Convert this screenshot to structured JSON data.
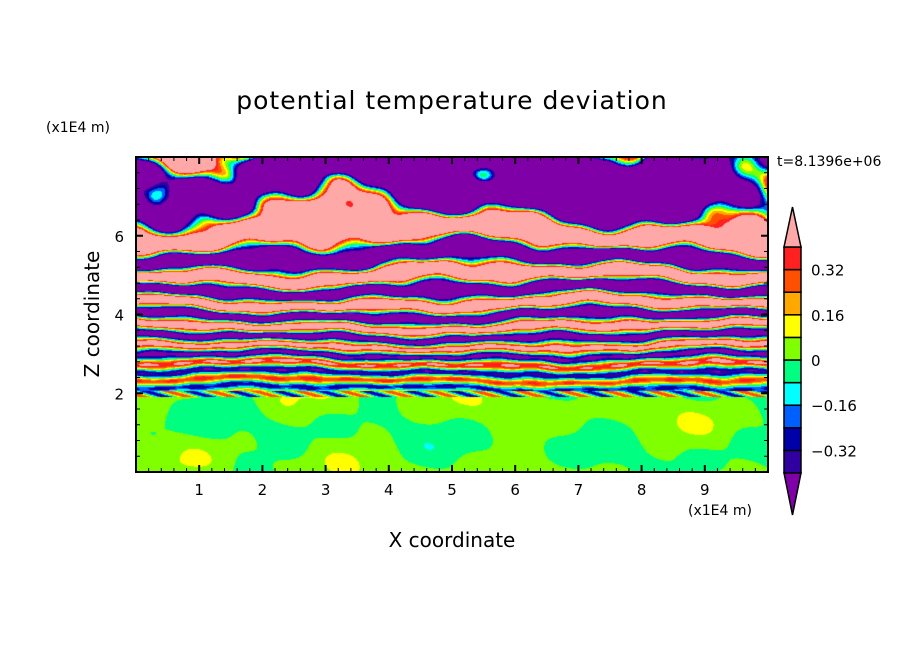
{
  "chart_data": {
    "type": "heatmap",
    "subtype": "filled-contour",
    "title": "potential temperature deviation",
    "xlabel": "X coordinate",
    "ylabel": "Z coordinate",
    "x_unit": "(x1E4 m)",
    "y_unit": "(x1E4 m)",
    "time_label": "t=8.1396e+06",
    "xlim": [
      0,
      10
    ],
    "ylim": [
      0,
      8
    ],
    "xticks": [
      1,
      2,
      3,
      4,
      5,
      6,
      7,
      8,
      9
    ],
    "yticks": [
      2,
      4,
      6
    ],
    "colorbar": {
      "levels": [
        -0.4,
        -0.32,
        -0.24,
        -0.16,
        -0.08,
        0,
        0.08,
        0.16,
        0.24,
        0.32,
        0.4
      ],
      "labels": [
        "0.32",
        "0.16",
        "0",
        "−0.16",
        "−0.32"
      ],
      "label_values": [
        0.32,
        0.16,
        0,
        -0.16,
        -0.32
      ],
      "colors": [
        "#8000a8",
        "#3000a0",
        "#0000a8",
        "#0060ff",
        "#00ffff",
        "#00ff80",
        "#80ff00",
        "#ffff00",
        "#ffa800",
        "#ff5000",
        "#ff2020",
        "#ffa8a8"
      ],
      "extend": "both"
    },
    "description_of_field": "stratified alternating positive/negative layers above z=2, near-zero values (0 to 0.08 and -0.08 to 0) below z=2"
  }
}
